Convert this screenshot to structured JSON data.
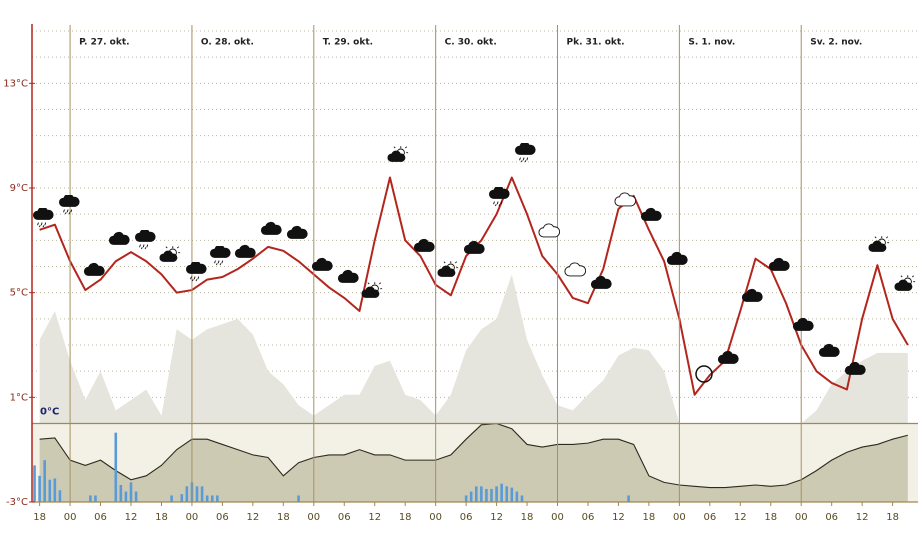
{
  "chart_data": {
    "type": "line",
    "xlim": [
      -1.5,
      173
    ],
    "ylim": [
      -3,
      15
    ],
    "yticks": [
      {
        "value": 13,
        "label": "13°C"
      },
      {
        "value": 9,
        "label": "9°C"
      },
      {
        "value": 5,
        "label": "5°C"
      },
      {
        "value": 1,
        "label": "1°C"
      },
      {
        "value": -3,
        "label": "-3°C"
      }
    ],
    "minor_yticks": [
      2,
      3,
      4,
      6,
      7,
      8,
      10,
      11,
      12,
      14,
      15
    ],
    "xticks": [
      {
        "value": 0,
        "label": "18"
      },
      {
        "value": 6,
        "label": "00"
      },
      {
        "value": 12,
        "label": "06"
      },
      {
        "value": 18,
        "label": "12"
      },
      {
        "value": 24,
        "label": "18"
      },
      {
        "value": 30,
        "label": "00"
      },
      {
        "value": 36,
        "label": "06"
      },
      {
        "value": 42,
        "label": "12"
      },
      {
        "value": 48,
        "label": "18"
      },
      {
        "value": 54,
        "label": "00"
      },
      {
        "value": 60,
        "label": "06"
      },
      {
        "value": 66,
        "label": "12"
      },
      {
        "value": 72,
        "label": "18"
      },
      {
        "value": 78,
        "label": "00"
      },
      {
        "value": 84,
        "label": "06"
      },
      {
        "value": 90,
        "label": "12"
      },
      {
        "value": 96,
        "label": "18"
      },
      {
        "value": 102,
        "label": "00"
      },
      {
        "value": 108,
        "label": "06"
      },
      {
        "value": 114,
        "label": "12"
      },
      {
        "value": 120,
        "label": "18"
      },
      {
        "value": 126,
        "label": "00"
      },
      {
        "value": 132,
        "label": "06"
      },
      {
        "value": 138,
        "label": "12"
      },
      {
        "value": 144,
        "label": "18"
      },
      {
        "value": 150,
        "label": "00"
      },
      {
        "value": 156,
        "label": "06"
      },
      {
        "value": 162,
        "label": "12"
      },
      {
        "value": 168,
        "label": "18"
      }
    ],
    "days": [
      {
        "label": "P. 27. okt.",
        "x": 6
      },
      {
        "label": "O. 28. okt.",
        "x": 30
      },
      {
        "label": "T. 29. okt.",
        "x": 54
      },
      {
        "label": "C. 30. okt.",
        "x": 78
      },
      {
        "label": "Pk. 31. okt.",
        "x": 102
      },
      {
        "label": "S. 1. nov.",
        "x": 126
      },
      {
        "label": "Sv. 2. nov.",
        "x": 150
      }
    ],
    "annotations": [
      {
        "text": "0°C",
        "y": 0
      }
    ],
    "grid": true,
    "x": [
      0,
      3,
      6,
      9,
      12,
      15,
      18,
      21,
      24,
      27,
      30,
      33,
      36,
      39,
      42,
      45,
      48,
      51,
      54,
      57,
      60,
      63,
      66,
      69,
      72,
      75,
      78,
      81,
      84,
      87,
      90,
      93,
      96,
      99,
      102,
      105,
      108,
      111,
      114,
      117,
      120,
      123,
      126,
      129,
      132,
      135,
      138,
      141,
      144,
      147,
      150,
      153,
      156,
      159,
      162,
      165,
      168,
      171
    ],
    "series": [
      {
        "type": "area",
        "fill_to": "zero",
        "color": "#e6e5dd",
        "values": [
          3.2,
          4.3,
          2.4,
          0.9,
          2.0,
          0.5,
          0.9,
          1.3,
          0.3,
          3.6,
          3.2,
          3.6,
          3.8,
          4.0,
          3.4,
          2.0,
          1.5,
          0.7,
          0.3,
          0.7,
          1.1,
          1.1,
          2.2,
          2.4,
          1.1,
          0.9,
          0.3,
          1.1,
          2.8,
          3.6,
          4.0,
          5.7,
          3.2,
          1.85,
          0.7,
          0.5,
          1.1,
          1.65,
          2.6,
          2.9,
          2.8,
          2.0,
          0,
          0,
          0,
          0,
          0,
          0,
          0,
          0,
          0,
          0.5,
          1.5,
          2.0,
          2.4,
          2.7,
          2.7,
          2.7
        ]
      },
      {
        "type": "area",
        "fill_to": "bottom",
        "color": "#cdcab4",
        "values": [
          -0.6,
          -0.55,
          -1.4,
          -1.6,
          -1.4,
          -1.8,
          -2.15,
          -2.0,
          -1.6,
          -1.0,
          -0.6,
          -0.6,
          -0.8,
          -1.0,
          -1.2,
          -1.3,
          -2.0,
          -1.5,
          -1.3,
          -1.2,
          -1.2,
          -1.0,
          -1.2,
          -1.2,
          -1.4,
          -1.4,
          -1.4,
          -1.2,
          -0.6,
          -0.05,
          0.0,
          -0.2,
          -0.8,
          -0.9,
          -0.8,
          -0.8,
          -0.75,
          -0.6,
          -0.6,
          -0.8,
          -2.0,
          -2.25,
          -2.35,
          -2.4,
          -2.45,
          -2.45,
          -2.4,
          -2.35,
          -2.4,
          -2.35,
          -2.15,
          -1.8,
          -1.4,
          -1.1,
          -0.9,
          -0.8,
          -0.6,
          -0.45
        ]
      },
      {
        "type": "bar",
        "color": "#5b9bd5",
        "x": [
          -1,
          0,
          1,
          2,
          3,
          4,
          10,
          11,
          15,
          16,
          17,
          18,
          19,
          26,
          28,
          29,
          30,
          31,
          32,
          33,
          34,
          35,
          51,
          84,
          85,
          86,
          87,
          88,
          89,
          90,
          91,
          92,
          93,
          94,
          95,
          116
        ],
        "values": [
          -1.6,
          -2.0,
          -1.4,
          -2.15,
          -2.1,
          -2.55,
          -2.75,
          -2.75,
          -0.35,
          -2.35,
          -2.6,
          -2.25,
          -2.6,
          -2.75,
          -2.7,
          -2.4,
          -2.25,
          -2.4,
          -2.4,
          -2.75,
          -2.75,
          -2.75,
          -2.75,
          -2.75,
          -2.6,
          -2.4,
          -2.4,
          -2.5,
          -2.5,
          -2.4,
          -2.3,
          -2.4,
          -2.45,
          -2.6,
          -2.75,
          -2.75
        ]
      },
      {
        "type": "line",
        "color": "#b3261e",
        "values": [
          7.4,
          7.6,
          6.2,
          5.1,
          5.5,
          6.2,
          6.55,
          6.2,
          5.7,
          5.0,
          5.1,
          5.5,
          5.6,
          5.9,
          6.3,
          6.75,
          6.6,
          6.2,
          5.7,
          5.2,
          4.8,
          4.3,
          7.0,
          9.4,
          7.0,
          6.4,
          5.3,
          4.9,
          6.4,
          7.0,
          8.0,
          9.4,
          8.0,
          6.4,
          5.7,
          4.8,
          4.6,
          5.9,
          8.2,
          8.7,
          7.4,
          6.2,
          4.0,
          1.1,
          1.85,
          2.4,
          4.3,
          6.3,
          5.9,
          4.6,
          3.0,
          2.0,
          1.55,
          1.3,
          4.0,
          6.05,
          4.0,
          3.0
        ]
      }
    ]
  }
}
